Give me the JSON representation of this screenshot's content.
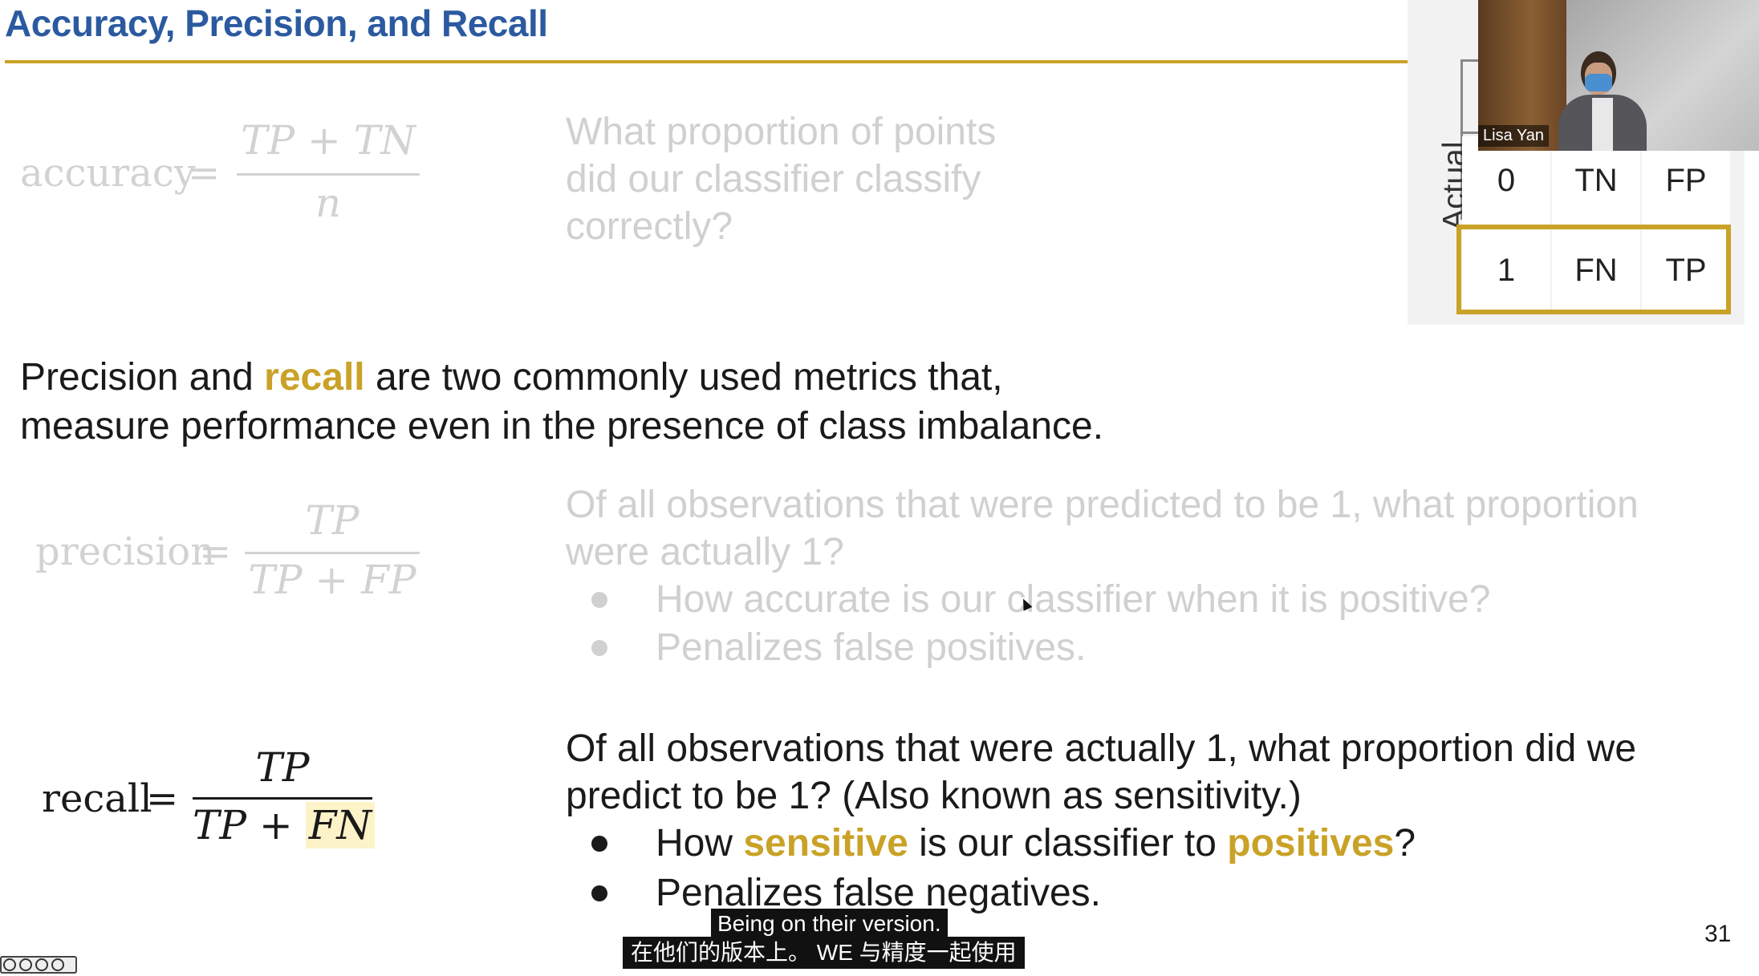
{
  "slide": {
    "title": "Accuracy, Precision, and Recall",
    "page_number": "31",
    "accent_color": "#c9a227",
    "title_color": "#2b5aa0"
  },
  "accuracy": {
    "name": "accuracy",
    "eq": "=",
    "numerator": "TP + TN",
    "denominator": "n",
    "question": [
      "What proportion of points",
      "did our classifier classify",
      "correctly?"
    ]
  },
  "intro": {
    "part1": "Precision and ",
    "highlight": "recall",
    "part2": " are two commonly used metrics that,",
    "line2": "measure performance even in the presence of class imbalance."
  },
  "precision": {
    "name": "precision",
    "eq": "=",
    "numerator": "TP",
    "denominator": "TP + FP",
    "question": [
      "Of all observations that were predicted to be 1, what proportion",
      "were actually 1?"
    ],
    "bullets": [
      "How accurate is our classifier when it is positive?",
      "Penalizes false positives."
    ]
  },
  "recall": {
    "name": "recall",
    "eq": "=",
    "numerator": "TP",
    "denominator_a": "TP + ",
    "denominator_b": "FN",
    "question": [
      "Of all observations that were actually 1, what proportion did we",
      "predict to be 1? (Also known as sensitivity.)"
    ],
    "bullet1": {
      "pre": "How ",
      "hl1": "sensitive",
      "mid": " is our classifier to ",
      "hl2": "positives",
      "post": "?"
    },
    "bullet2": "Penalizes false negatives."
  },
  "matrix": {
    "axis_label": "Actual",
    "rows": [
      {
        "label": "0",
        "cells": [
          "TN",
          "FP"
        ]
      },
      {
        "label": "1",
        "cells": [
          "FN",
          "TP"
        ]
      }
    ]
  },
  "webcam": {
    "name": "Lisa Yan"
  },
  "subtitles": {
    "en": "Being on their version.",
    "zh": "在他们的版本上。 WE 与精度一起使用"
  }
}
